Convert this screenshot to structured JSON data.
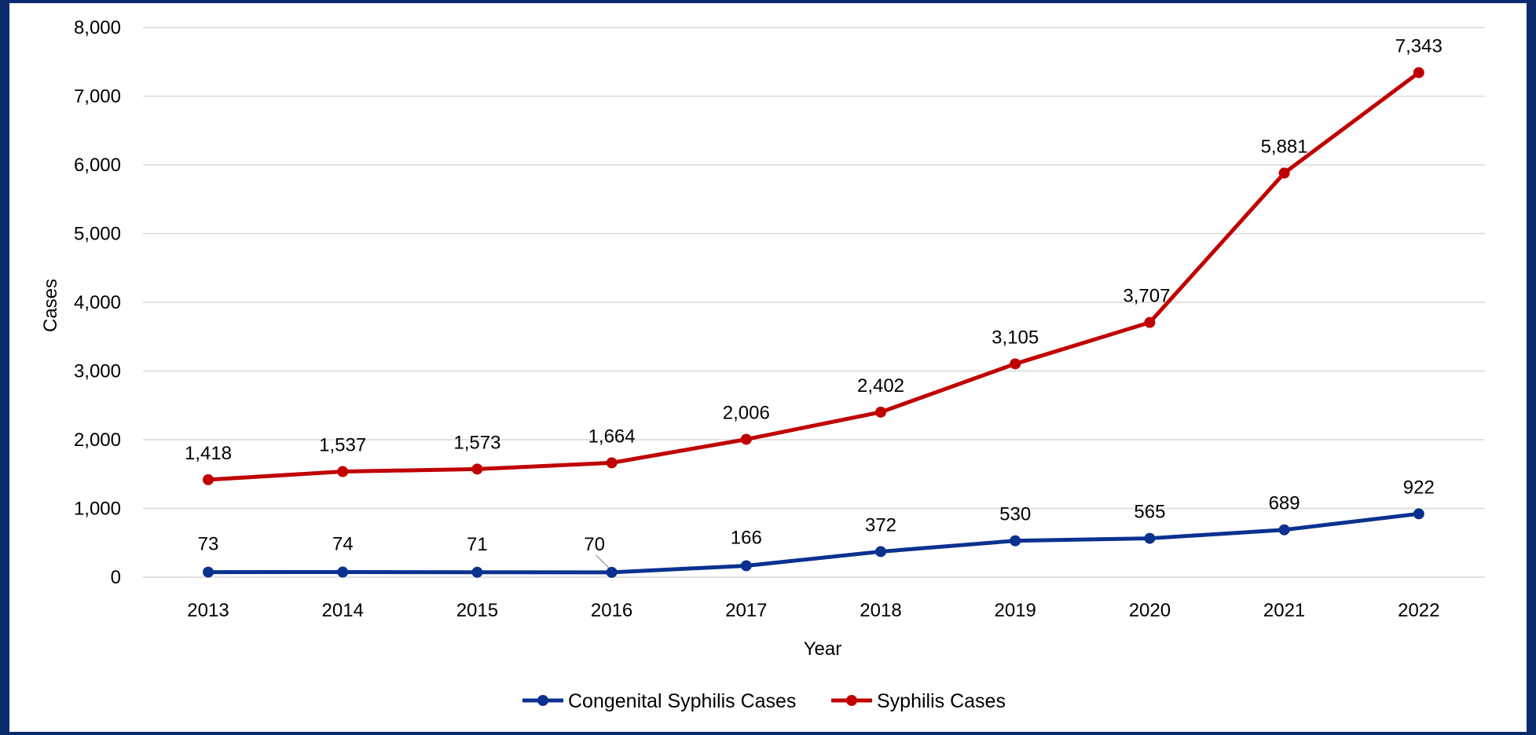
{
  "chart_data": {
    "type": "line",
    "categories": [
      "2013",
      "2014",
      "2015",
      "2016",
      "2017",
      "2018",
      "2019",
      "2020",
      "2021",
      "2022"
    ],
    "series": [
      {
        "name": "Congenital Syphilis Cases",
        "color": "#0b318f",
        "values": [
          73,
          74,
          71,
          70,
          166,
          372,
          530,
          565,
          689,
          922
        ],
        "labels": [
          "73",
          "74",
          "71",
          "70",
          "166",
          "372",
          "530",
          "565",
          "689",
          "922"
        ]
      },
      {
        "name": "Syphilis Cases",
        "color": "#c00000",
        "values": [
          1418,
          1537,
          1573,
          1664,
          2006,
          2402,
          3105,
          3707,
          5881,
          7343
        ],
        "labels": [
          "1,418",
          "1,537",
          "1,573",
          "1,664",
          "2,006",
          "2,402",
          "3,105",
          "3,707",
          "5,881",
          "7,343"
        ]
      }
    ],
    "xlabel": "Year",
    "ylabel": "Cases",
    "ylim": [
      0,
      8000
    ],
    "yticks": [
      0,
      1000,
      2000,
      3000,
      4000,
      5000,
      6000,
      7000,
      8000
    ],
    "ytick_labels": [
      "0",
      "1,000",
      "2,000",
      "3,000",
      "4,000",
      "5,000",
      "6,000",
      "7,000",
      "8,000"
    ],
    "grid": true,
    "legend_position": "bottom",
    "frame_color": "#0a2a6e",
    "grid_color": "#d9d9d9"
  }
}
